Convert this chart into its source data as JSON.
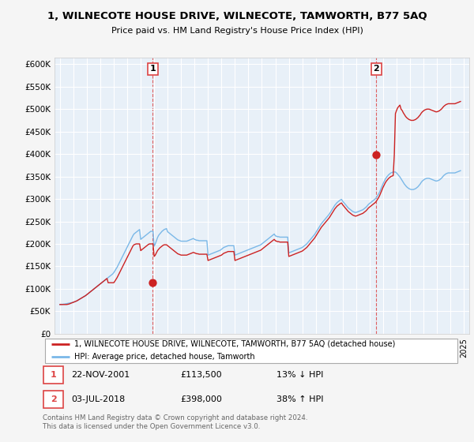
{
  "title": "1, WILNECOTE HOUSE DRIVE, WILNECOTE, TAMWORTH, B77 5AQ",
  "subtitle": "Price paid vs. HM Land Registry's House Price Index (HPI)",
  "yticks": [
    0,
    50000,
    100000,
    150000,
    200000,
    250000,
    300000,
    350000,
    400000,
    450000,
    500000,
    550000,
    600000
  ],
  "xlim_start": 1994.6,
  "xlim_end": 2025.4,
  "ylim_min": 0,
  "ylim_max": 615000,
  "sale1_x": 2001.9,
  "sale1_y": 113500,
  "sale2_x": 2018.5,
  "sale2_y": 398000,
  "hpi_color": "#7ab8e8",
  "sale_color": "#cc2222",
  "vline_color": "#dd4444",
  "legend_label_sale": "1, WILNECOTE HOUSE DRIVE, WILNECOTE, TAMWORTH, B77 5AQ (detached house)",
  "legend_label_hpi": "HPI: Average price, detached house, Tamworth",
  "footer": "Contains HM Land Registry data © Crown copyright and database right 2024.\nThis data is licensed under the Open Government Licence v3.0.",
  "plot_bg_color": "#e8f0f8",
  "fig_bg_color": "#f5f5f5",
  "hpi_y": [
    65000,
    65500,
    65200,
    65800,
    66000,
    66500,
    67000,
    67500,
    68000,
    68500,
    69000,
    69500,
    70000,
    71000,
    72000,
    73000,
    74500,
    76000,
    77500,
    79000,
    80500,
    82000,
    83500,
    85000,
    87000,
    89000,
    91000,
    93000,
    95000,
    97000,
    99000,
    101000,
    103000,
    105000,
    107000,
    109000,
    111000,
    113000,
    115000,
    117000,
    119000,
    121000,
    123000,
    125000,
    127000,
    129000,
    131000,
    133000,
    136000,
    140000,
    144000,
    148000,
    153000,
    158000,
    163000,
    168000,
    173000,
    178000,
    183000,
    188000,
    193000,
    198000,
    203000,
    208000,
    213000,
    218000,
    222000,
    224000,
    226000,
    228000,
    230000,
    232000,
    210000,
    212000,
    214000,
    216000,
    218000,
    220000,
    222000,
    224000,
    226000,
    228000,
    228000,
    228000,
    195000,
    200000,
    207000,
    214000,
    219000,
    222000,
    225000,
    228000,
    230000,
    232000,
    233000,
    234000,
    227000,
    225000,
    223000,
    221000,
    219000,
    217000,
    215000,
    213000,
    211000,
    209000,
    208000,
    207000,
    206000,
    206000,
    206000,
    206000,
    206000,
    206000,
    207000,
    208000,
    209000,
    210000,
    211000,
    212000,
    210000,
    209000,
    208000,
    208000,
    207000,
    207000,
    207000,
    207000,
    207000,
    207000,
    207000,
    207000,
    175000,
    176000,
    177000,
    178000,
    179000,
    180000,
    181000,
    182000,
    183000,
    184000,
    185000,
    186000,
    188000,
    190000,
    192000,
    193000,
    194000,
    195000,
    196000,
    196000,
    196000,
    196000,
    196000,
    196000,
    175000,
    176000,
    177000,
    178000,
    179000,
    180000,
    181000,
    182000,
    183000,
    184000,
    185000,
    186000,
    187000,
    188000,
    189000,
    190000,
    191000,
    192000,
    193000,
    194000,
    195000,
    196000,
    197000,
    198000,
    200000,
    202000,
    204000,
    206000,
    208000,
    210000,
    212000,
    214000,
    216000,
    218000,
    220000,
    222000,
    218000,
    217000,
    216000,
    216000,
    215000,
    215000,
    215000,
    215000,
    215000,
    215000,
    215000,
    215000,
    180000,
    181000,
    182000,
    183000,
    184000,
    185000,
    186000,
    187000,
    188000,
    189000,
    190000,
    191000,
    192000,
    194000,
    196000,
    198000,
    200000,
    203000,
    206000,
    209000,
    212000,
    215000,
    218000,
    221000,
    225000,
    229000,
    233000,
    237000,
    241000,
    245000,
    248000,
    251000,
    254000,
    257000,
    260000,
    263000,
    266000,
    270000,
    274000,
    278000,
    282000,
    286000,
    289000,
    292000,
    294000,
    296000,
    298000,
    299000,
    295000,
    292000,
    289000,
    286000,
    283000,
    280000,
    278000,
    276000,
    274000,
    272000,
    271000,
    270000,
    270000,
    271000,
    272000,
    273000,
    274000,
    275000,
    276000,
    278000,
    280000,
    282000,
    285000,
    288000,
    290000,
    292000,
    294000,
    296000,
    298000,
    300000,
    303000,
    307000,
    311000,
    316000,
    322000,
    328000,
    334000,
    339000,
    344000,
    348000,
    351000,
    354000,
    356000,
    358000,
    359000,
    360000,
    360000,
    360000,
    358000,
    355000,
    352000,
    349000,
    345000,
    341000,
    337000,
    333000,
    330000,
    327000,
    325000,
    323000,
    322000,
    321000,
    321000,
    321000,
    322000,
    323000,
    325000,
    327000,
    330000,
    333000,
    337000,
    340000,
    342000,
    344000,
    345000,
    346000,
    346000,
    346000,
    345000,
    344000,
    343000,
    342000,
    341000,
    340000,
    340000,
    341000,
    342000,
    344000,
    346000,
    349000,
    352000,
    354000,
    356000,
    357000,
    358000,
    358000,
    358000,
    358000,
    358000,
    358000,
    358000,
    359000,
    360000,
    361000,
    362000,
    363000
  ],
  "sale_y": [
    65000,
    65000,
    65000,
    65000,
    65000,
    65000,
    65000,
    65500,
    66000,
    67000,
    68000,
    69000,
    70000,
    71000,
    72000,
    73000,
    74500,
    76000,
    77500,
    79000,
    80500,
    82000,
    83500,
    85000,
    87000,
    89000,
    91000,
    93000,
    95000,
    97000,
    99000,
    101000,
    103000,
    105000,
    107000,
    109000,
    111000,
    113000,
    115000,
    117000,
    119000,
    121000,
    123000,
    113500,
    113500,
    113500,
    113500,
    113500,
    113500,
    117000,
    121000,
    125000,
    130000,
    135000,
    140000,
    145000,
    150000,
    155000,
    160000,
    165000,
    170000,
    175000,
    180000,
    185000,
    190000,
    195000,
    198000,
    199000,
    200000,
    200000,
    200000,
    200000,
    185000,
    187000,
    189000,
    191000,
    193000,
    195000,
    197000,
    199000,
    200000,
    200000,
    200000,
    200000,
    172000,
    175000,
    180000,
    185000,
    188000,
    191000,
    193000,
    195000,
    197000,
    198000,
    198000,
    198000,
    196000,
    194000,
    192000,
    190000,
    188000,
    186000,
    184000,
    182000,
    180000,
    178000,
    177000,
    176000,
    175000,
    175000,
    175000,
    175000,
    175000,
    175000,
    176000,
    177000,
    178000,
    179000,
    180000,
    181000,
    180000,
    179000,
    178000,
    178000,
    177000,
    177000,
    177000,
    177000,
    177000,
    177000,
    177000,
    177000,
    163000,
    164000,
    165000,
    166000,
    167000,
    168000,
    169000,
    170000,
    171000,
    172000,
    173000,
    174000,
    175000,
    177000,
    179000,
    180000,
    181000,
    182000,
    183000,
    183000,
    183000,
    183000,
    183000,
    183000,
    163000,
    164000,
    165000,
    166000,
    167000,
    168000,
    169000,
    170000,
    171000,
    172000,
    173000,
    174000,
    175000,
    176000,
    177000,
    178000,
    179000,
    180000,
    181000,
    182000,
    183000,
    184000,
    185000,
    186000,
    188000,
    190000,
    192000,
    194000,
    196000,
    198000,
    200000,
    202000,
    204000,
    206000,
    208000,
    210000,
    207000,
    206000,
    205000,
    205000,
    204000,
    204000,
    204000,
    204000,
    204000,
    204000,
    204000,
    204000,
    172000,
    173000,
    174000,
    175000,
    176000,
    177000,
    178000,
    179000,
    180000,
    181000,
    182000,
    183000,
    184000,
    186000,
    188000,
    190000,
    192000,
    195000,
    198000,
    201000,
    204000,
    207000,
    210000,
    213000,
    217000,
    221000,
    225000,
    229000,
    233000,
    237000,
    240000,
    243000,
    246000,
    249000,
    252000,
    255000,
    258000,
    262000,
    266000,
    270000,
    274000,
    278000,
    281000,
    284000,
    286000,
    288000,
    290000,
    291000,
    287000,
    284000,
    281000,
    278000,
    275000,
    272000,
    270000,
    268000,
    266000,
    264000,
    263000,
    262000,
    262000,
    263000,
    264000,
    265000,
    266000,
    267000,
    268000,
    270000,
    272000,
    274000,
    277000,
    280000,
    282000,
    284000,
    286000,
    288000,
    290000,
    292000,
    295000,
    299000,
    303000,
    308000,
    314000,
    320000,
    326000,
    331000,
    336000,
    340000,
    343000,
    346000,
    348000,
    350000,
    351000,
    352000,
    398000,
    490000,
    497000,
    503000,
    506000,
    509000,
    500000,
    497000,
    492000,
    488000,
    484000,
    481000,
    479000,
    477000,
    476000,
    475000,
    475000,
    475000,
    476000,
    477000,
    479000,
    481000,
    484000,
    487000,
    491000,
    494000,
    496000,
    498000,
    499000,
    500000,
    500000,
    500000,
    499000,
    498000,
    497000,
    496000,
    495000,
    494000,
    494000,
    495000,
    496000,
    498000,
    500000,
    503000,
    506000,
    508000,
    510000,
    511000,
    512000,
    512000,
    512000,
    512000,
    512000,
    512000,
    512000,
    513000,
    514000,
    515000,
    516000,
    517000
  ]
}
